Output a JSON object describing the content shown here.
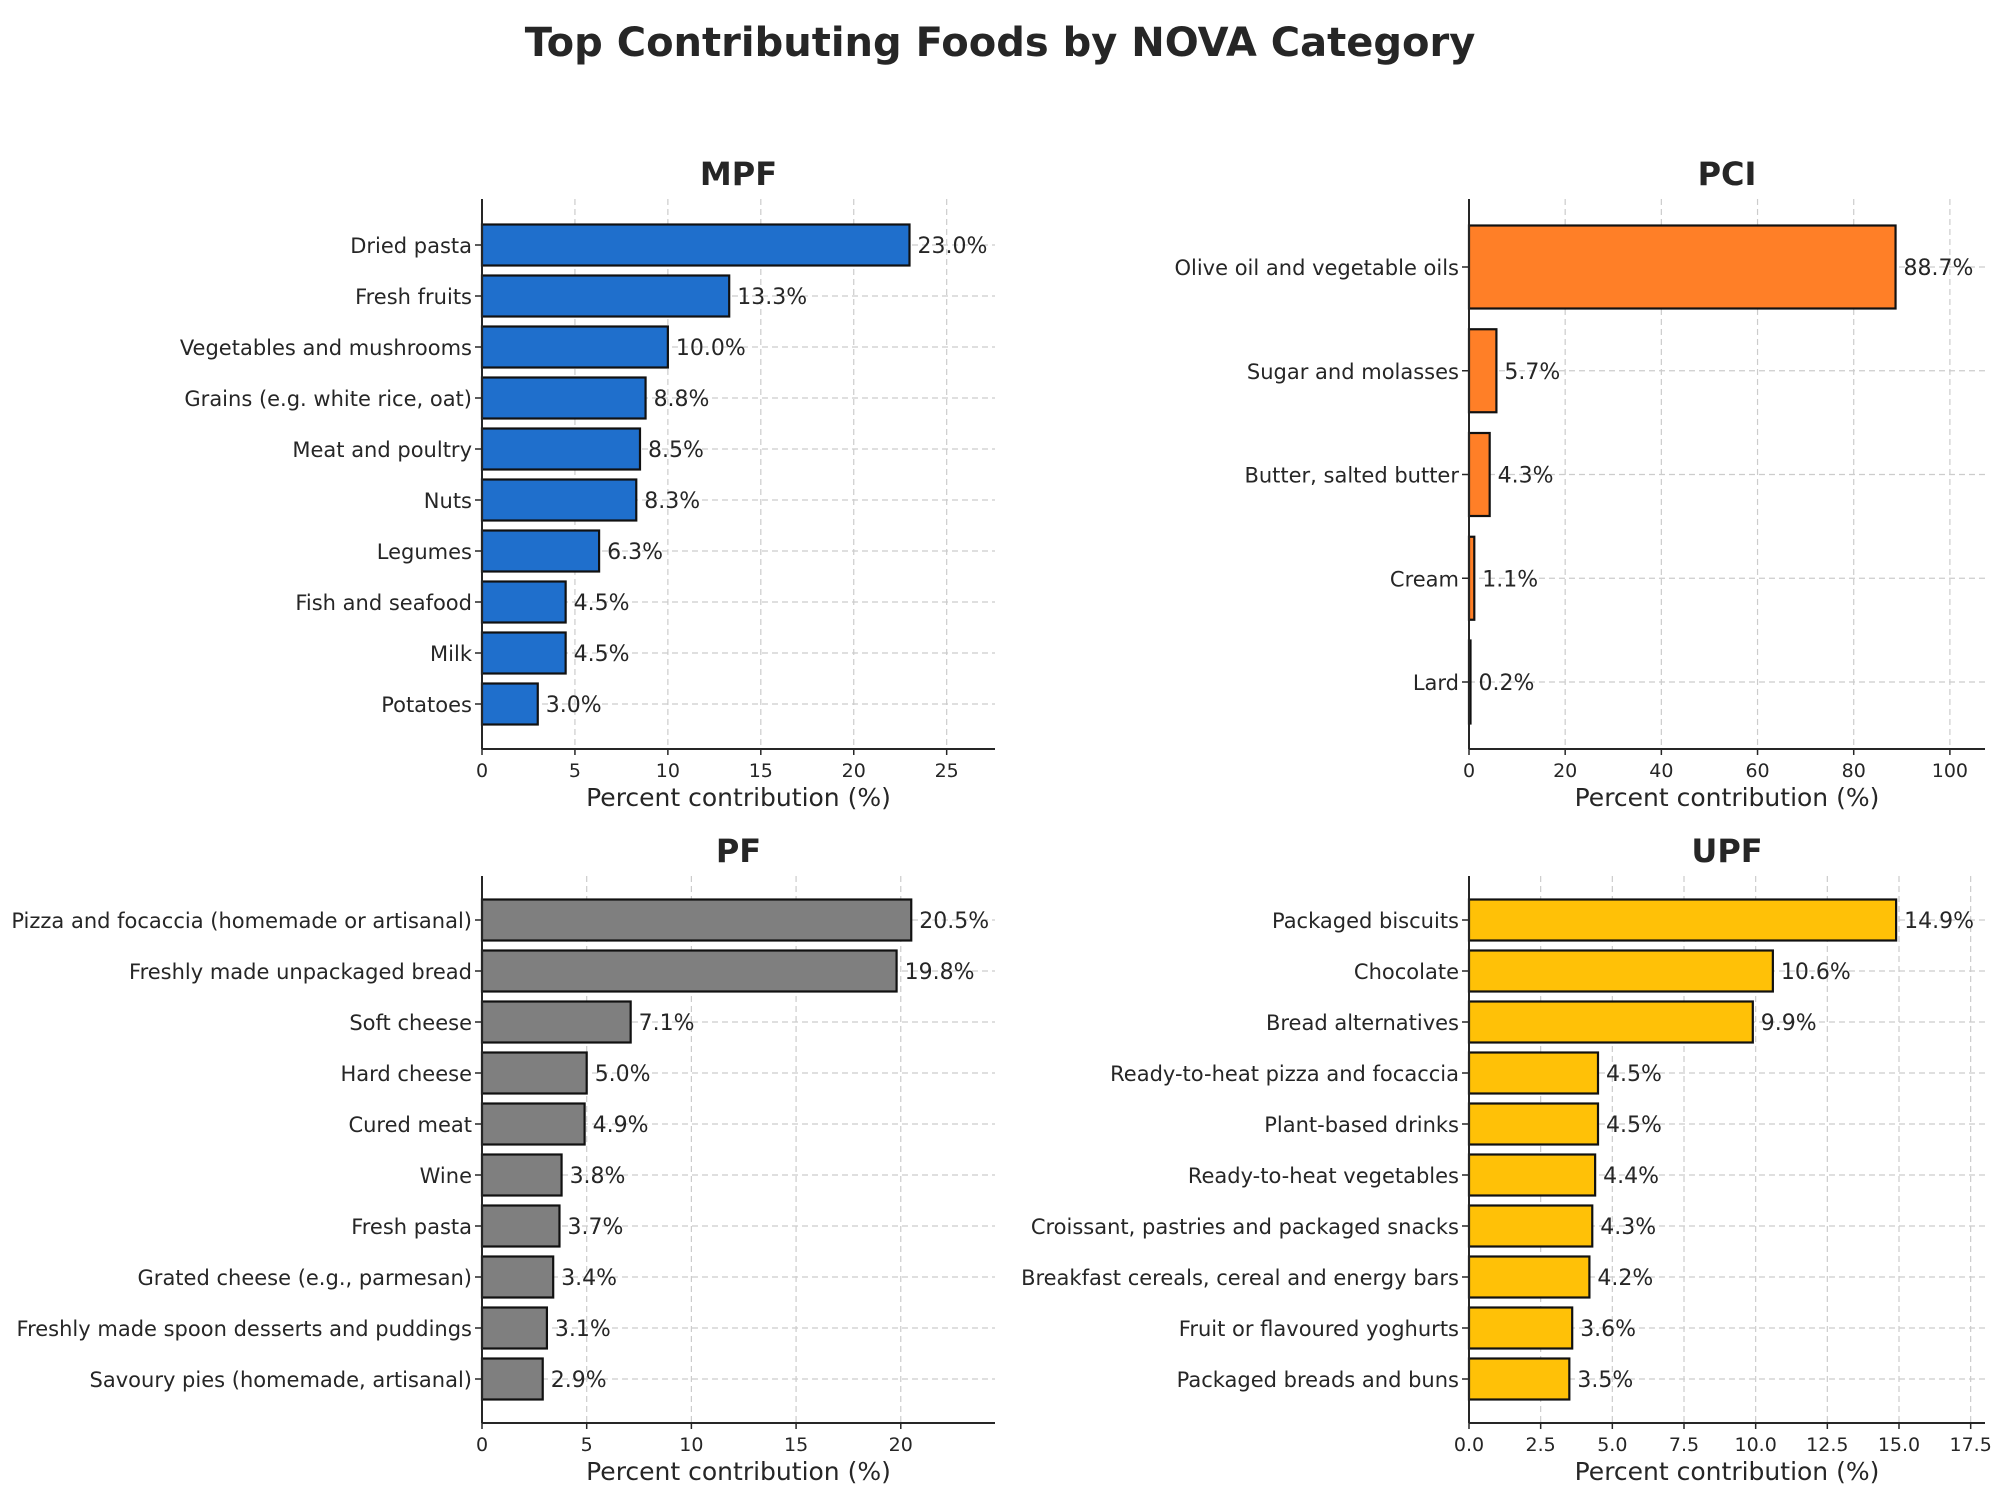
{
  "title": "Top Contributing Foods by NOVA Category",
  "chart_data": [
    {
      "type": "bar",
      "orientation": "horizontal",
      "title": "MPF",
      "xlabel": "Percent contribution (%)",
      "ylabel": "",
      "color": "#1f6fcc",
      "xlim": [
        0,
        27.6
      ],
      "xticks": [
        "0",
        "5",
        "10",
        "15",
        "20",
        "25"
      ],
      "grid": true,
      "categories": [
        "Dried pasta",
        "Fresh fruits",
        "Vegetables and mushrooms",
        "Grains (e.g. white rice, oat)",
        "Meat and poultry",
        "Nuts",
        "Legumes",
        "Fish and seafood",
        "Milk",
        "Potatoes"
      ],
      "values": [
        23.0,
        13.3,
        10.0,
        8.8,
        8.5,
        8.3,
        6.3,
        4.5,
        4.5,
        3.0
      ],
      "data_labels": [
        "23.0%",
        "13.3%",
        "10.0%",
        "8.8%",
        "8.5%",
        "8.3%",
        "6.3%",
        "4.5%",
        "4.5%",
        "3.0%"
      ]
    },
    {
      "type": "bar",
      "orientation": "horizontal",
      "title": "PCI",
      "xlabel": "Percent contribution (%)",
      "ylabel": "",
      "color": "#ff7f27",
      "xlim": [
        0,
        107.3
      ],
      "xticks": [
        "0",
        "20",
        "40",
        "60",
        "80",
        "100"
      ],
      "grid": true,
      "categories": [
        "Olive oil and vegetable oils",
        "Sugar and molasses",
        "Butter, salted butter",
        "Cream",
        "Lard"
      ],
      "values": [
        88.7,
        5.7,
        4.3,
        1.1,
        0.2
      ],
      "data_labels": [
        "88.7%",
        "5.7%",
        "4.3%",
        "1.1%",
        "0.2%"
      ]
    },
    {
      "type": "bar",
      "orientation": "horizontal",
      "title": "PF",
      "xlabel": "Percent contribution (%)",
      "ylabel": "",
      "color": "#7f7f7f",
      "xlim": [
        0,
        24.5
      ],
      "xticks": [
        "0",
        "5",
        "10",
        "15",
        "20"
      ],
      "grid": true,
      "categories": [
        "Pizza and focaccia (homemade or artisanal)",
        "Freshly made unpackaged bread",
        "Soft cheese",
        "Hard cheese",
        "Cured meat",
        "Wine",
        "Fresh pasta",
        "Grated cheese (e.g., parmesan)",
        "Freshly made spoon desserts and puddings",
        "Savoury pies (homemade, artisanal)"
      ],
      "values": [
        20.5,
        19.8,
        7.1,
        5.0,
        4.9,
        3.8,
        3.7,
        3.4,
        3.1,
        2.9
      ],
      "data_labels": [
        "20.5%",
        "19.8%",
        "7.1%",
        "5.0%",
        "4.9%",
        "3.8%",
        "3.7%",
        "3.4%",
        "3.1%",
        "2.9%"
      ]
    },
    {
      "type": "bar",
      "orientation": "horizontal",
      "title": "UPF",
      "xlabel": "Percent contribution (%)",
      "ylabel": "",
      "color": "#ffc107",
      "xlim": [
        0,
        18.0
      ],
      "xticks": [
        "0.0",
        "2.5",
        "5.0",
        "7.5",
        "10.0",
        "12.5",
        "15.0",
        "17.5"
      ],
      "grid": true,
      "categories": [
        "Packaged biscuits",
        "Chocolate",
        "Bread alternatives",
        "Ready-to-heat pizza and focaccia",
        "Plant-based drinks",
        "Ready-to-heat vegetables",
        "Croissant, pastries and packaged snacks",
        "Breakfast cereals, cereal and energy bars",
        "Fruit or flavoured yoghurts",
        "Packaged breads and buns"
      ],
      "values": [
        14.9,
        10.6,
        9.9,
        4.5,
        4.5,
        4.4,
        4.3,
        4.2,
        3.6,
        3.5
      ],
      "data_labels": [
        "14.9%",
        "10.6%",
        "9.9%",
        "4.5%",
        "4.5%",
        "4.4%",
        "4.3%",
        "4.2%",
        "3.6%",
        "3.5%"
      ]
    }
  ]
}
